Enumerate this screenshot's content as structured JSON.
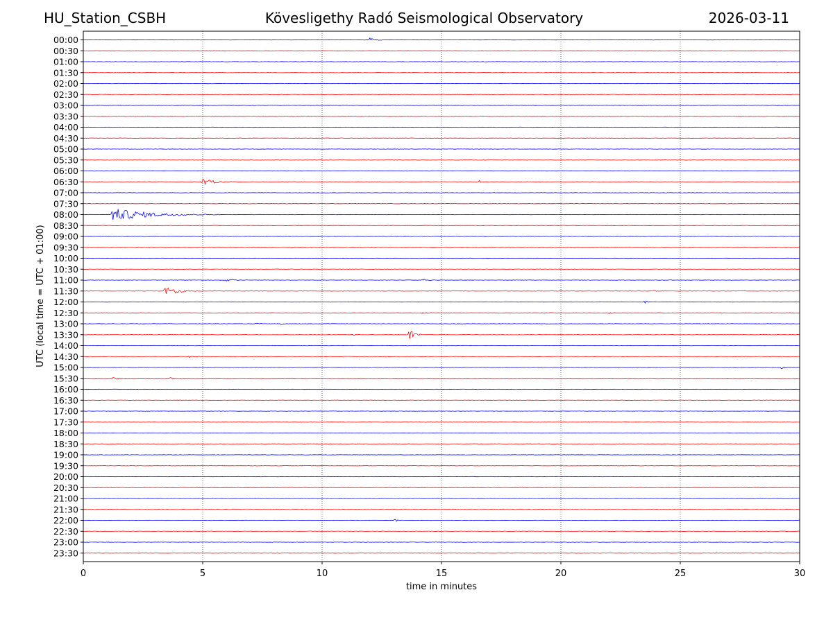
{
  "header": {
    "station": "HU_Station_CSBH",
    "observatory": "Kövesligethy Radó Seismological Observatory",
    "date": "2026-03-11"
  },
  "chart_data": {
    "type": "line",
    "title": "Kövesligethy Radó Seismological Observatory",
    "xlabel": "time in minutes",
    "ylabel": "UTC (local time = UTC + 01:00)",
    "xlim": [
      0,
      30
    ],
    "xticks": [
      0,
      5,
      10,
      15,
      20,
      25,
      30
    ],
    "vertical_gridlines_at": [
      5,
      10,
      15,
      20,
      25
    ],
    "trace_colors": [
      "#0000ff",
      "#ff0000"
    ],
    "rows": [
      "00:00",
      "00:30",
      "01:00",
      "01:30",
      "02:00",
      "02:30",
      "03:00",
      "03:30",
      "04:00",
      "04:30",
      "05:00",
      "05:30",
      "06:00",
      "06:30",
      "07:00",
      "07:30",
      "08:00",
      "08:30",
      "09:00",
      "09:30",
      "10:00",
      "10:30",
      "11:00",
      "11:30",
      "12:00",
      "12:30",
      "13:00",
      "13:30",
      "14:00",
      "14:30",
      "15:00",
      "15:30",
      "16:00",
      "16:30",
      "17:00",
      "17:30",
      "18:00",
      "18:30",
      "19:00",
      "19:30",
      "20:00",
      "20:30",
      "21:00",
      "21:30",
      "22:00",
      "22:30",
      "23:00",
      "23:30"
    ],
    "events": [
      {
        "row": "00:00",
        "minute": 12.0,
        "amplitude": 0.35,
        "duration_min": 1.0
      },
      {
        "row": "06:30",
        "minute": 5.0,
        "amplitude": 0.6,
        "duration_min": 1.5
      },
      {
        "row": "06:30",
        "minute": 16.6,
        "amplitude": 0.35,
        "duration_min": 0.1
      },
      {
        "row": "08:00",
        "minute": 1.2,
        "amplitude": 1.2,
        "duration_min": 4.5
      },
      {
        "row": "11:00",
        "minute": 6.0,
        "amplitude": 0.25,
        "duration_min": 1.0
      },
      {
        "row": "11:00",
        "minute": 14.2,
        "amplitude": 0.25,
        "duration_min": 0.6
      },
      {
        "row": "11:30",
        "minute": 3.4,
        "amplitude": 0.9,
        "duration_min": 1.5
      },
      {
        "row": "11:30",
        "minute": 23.8,
        "amplitude": 0.3,
        "duration_min": 0.5
      },
      {
        "row": "12:00",
        "minute": 23.5,
        "amplitude": 0.3,
        "duration_min": 0.5
      },
      {
        "row": "12:30",
        "minute": 14.2,
        "amplitude": 0.25,
        "duration_min": 0.5
      },
      {
        "row": "12:30",
        "minute": 22.0,
        "amplitude": 0.35,
        "duration_min": 0.4
      },
      {
        "row": "13:00",
        "minute": 7.2,
        "amplitude": 0.25,
        "duration_min": 0.4
      },
      {
        "row": "13:00",
        "minute": 8.3,
        "amplitude": 0.25,
        "duration_min": 0.4
      },
      {
        "row": "13:30",
        "minute": 13.65,
        "amplitude": 1.1,
        "duration_min": 0.6
      },
      {
        "row": "13:30",
        "minute": 11.3,
        "amplitude": 0.2,
        "duration_min": 0.4
      },
      {
        "row": "14:30",
        "minute": 4.4,
        "amplitude": 0.3,
        "duration_min": 0.6
      },
      {
        "row": "15:00",
        "minute": 29.2,
        "amplitude": 0.3,
        "duration_min": 0.6
      },
      {
        "row": "15:30",
        "minute": 1.2,
        "amplitude": 0.25,
        "duration_min": 1.0
      },
      {
        "row": "15:30",
        "minute": 3.6,
        "amplitude": 0.25,
        "duration_min": 0.3
      },
      {
        "row": "22:00",
        "minute": 13.05,
        "amplitude": 0.45,
        "duration_min": 0.3
      }
    ]
  }
}
